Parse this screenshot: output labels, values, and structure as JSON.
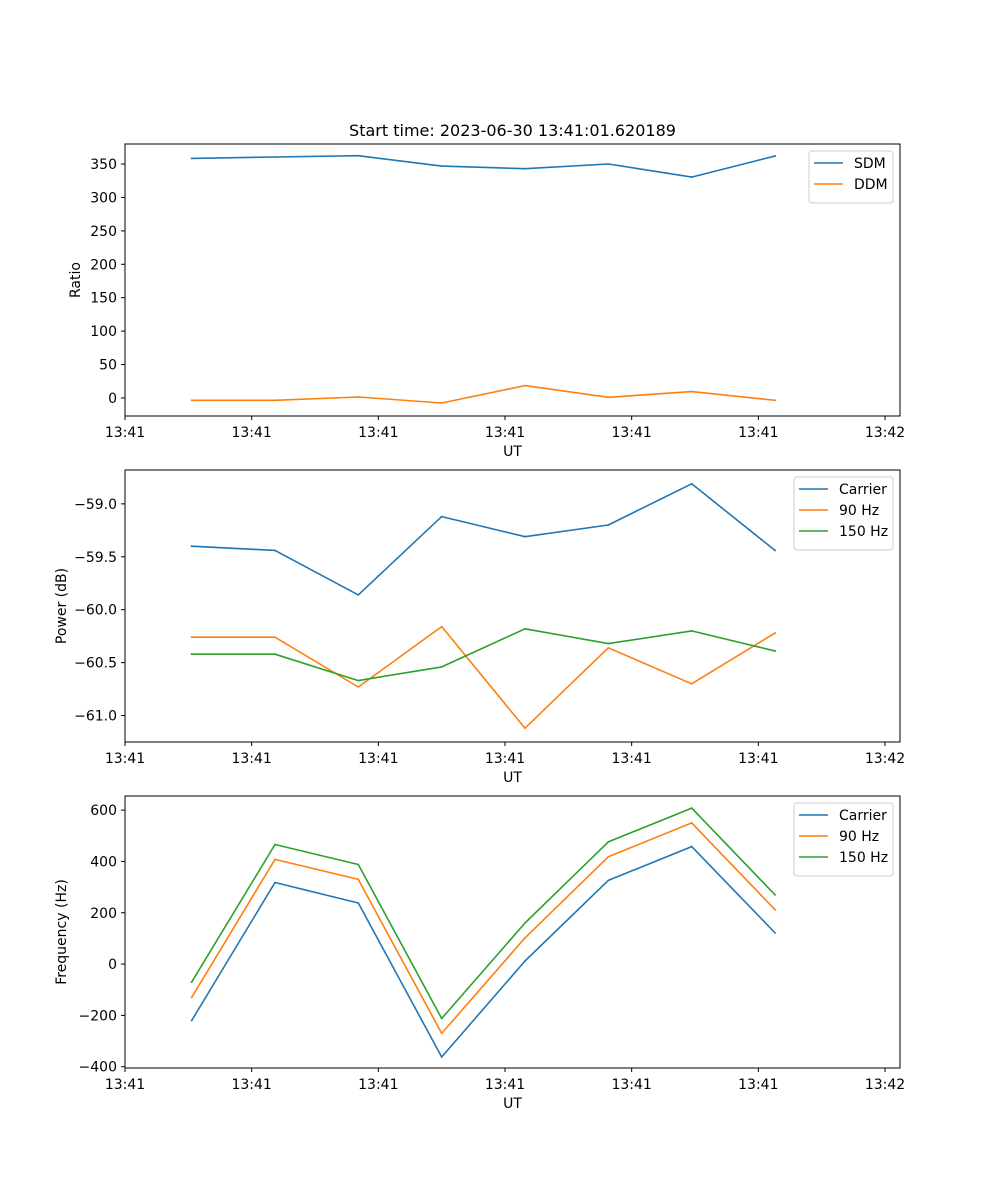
{
  "figure_title": "Start time: 2023-06-30 13:41:01.620189",
  "chart_data": [
    {
      "type": "line",
      "title": "Start time: 2023-06-30 13:41:01.620189",
      "xlabel": "UT",
      "ylabel": "Ratio",
      "x": [
        1,
        2,
        3,
        4,
        5,
        6,
        7,
        8
      ],
      "xlim": [
        0.2,
        9.5
      ],
      "x_ticks": [
        0.2,
        1.72,
        3.24,
        4.76,
        6.28,
        7.8,
        9.32
      ],
      "x_tick_labels": [
        "13:41",
        "13:41",
        "13:41",
        "13:41",
        "13:41",
        "13:41",
        "13:42"
      ],
      "ylim": [
        -27,
        380
      ],
      "y_ticks": [
        0,
        50,
        100,
        150,
        200,
        250,
        300,
        350
      ],
      "y_tick_labels": [
        "0",
        "50",
        "100",
        "150",
        "200",
        "250",
        "300",
        "350"
      ],
      "legend_position": "top-right",
      "series": [
        {
          "name": "SDM",
          "color": "#1f77b4",
          "values": [
            358.5,
            360.5,
            362.5,
            347,
            343,
            350,
            330.5,
            362
          ]
        },
        {
          "name": "DDM",
          "color": "#ff7f0e",
          "values": [
            -3.5,
            -3.5,
            1.5,
            -7.5,
            18.5,
            1,
            9.5,
            -3.5
          ]
        }
      ]
    },
    {
      "type": "line",
      "title": "",
      "xlabel": "UT",
      "ylabel": "Power (dB)",
      "x": [
        1,
        2,
        3,
        4,
        5,
        6,
        7,
        8
      ],
      "xlim": [
        0.2,
        9.5
      ],
      "x_ticks": [
        0.2,
        1.72,
        3.24,
        4.76,
        6.28,
        7.8,
        9.32
      ],
      "x_tick_labels": [
        "13:41",
        "13:41",
        "13:41",
        "13:41",
        "13:41",
        "13:41",
        "13:42"
      ],
      "ylim": [
        -61.25,
        -58.68
      ],
      "y_ticks": [
        -61.0,
        -60.5,
        -60.0,
        -59.5,
        -59.0
      ],
      "y_tick_labels": [
        "−61.0",
        "−60.5",
        "−60.0",
        "−59.5",
        "−59.0"
      ],
      "legend_position": "top-right",
      "series": [
        {
          "name": "Carrier",
          "color": "#1f77b4",
          "values": [
            -59.4,
            -59.44,
            -59.86,
            -59.12,
            -59.31,
            -59.2,
            -58.81,
            -59.44
          ]
        },
        {
          "name": "90 Hz",
          "color": "#ff7f0e",
          "values": [
            -60.26,
            -60.26,
            -60.73,
            -60.16,
            -61.12,
            -60.36,
            -60.7,
            -60.22
          ]
        },
        {
          "name": "150 Hz",
          "color": "#2ca02c",
          "values": [
            -60.42,
            -60.42,
            -60.67,
            -60.54,
            -60.18,
            -60.32,
            -60.2,
            -60.39
          ]
        }
      ]
    },
    {
      "type": "line",
      "title": "",
      "xlabel": "UT",
      "ylabel": "Frequency (Hz)",
      "x": [
        1,
        2,
        3,
        4,
        5,
        6,
        7,
        8
      ],
      "xlim": [
        0.2,
        9.5
      ],
      "x_ticks": [
        0.2,
        1.72,
        3.24,
        4.76,
        6.28,
        7.8,
        9.32
      ],
      "x_tick_labels": [
        "13:41",
        "13:41",
        "13:41",
        "13:41",
        "13:41",
        "13:41",
        "13:42"
      ],
      "ylim": [
        -405,
        655
      ],
      "y_ticks": [
        -400,
        -200,
        0,
        200,
        400,
        600
      ],
      "y_tick_labels": [
        "−400",
        "−200",
        "0",
        "200",
        "400",
        "600"
      ],
      "legend_position": "top-right",
      "series": [
        {
          "name": "Carrier",
          "color": "#1f77b4",
          "values": [
            -220,
            318,
            238,
            -362,
            12,
            326,
            458,
            122
          ]
        },
        {
          "name": "90 Hz",
          "color": "#ff7f0e",
          "values": [
            -130,
            408,
            330,
            -270,
            102,
            418,
            550,
            212
          ]
        },
        {
          "name": "150 Hz",
          "color": "#2ca02c",
          "values": [
            -70,
            466,
            388,
            -212,
            160,
            476,
            608,
            270
          ]
        }
      ]
    }
  ]
}
